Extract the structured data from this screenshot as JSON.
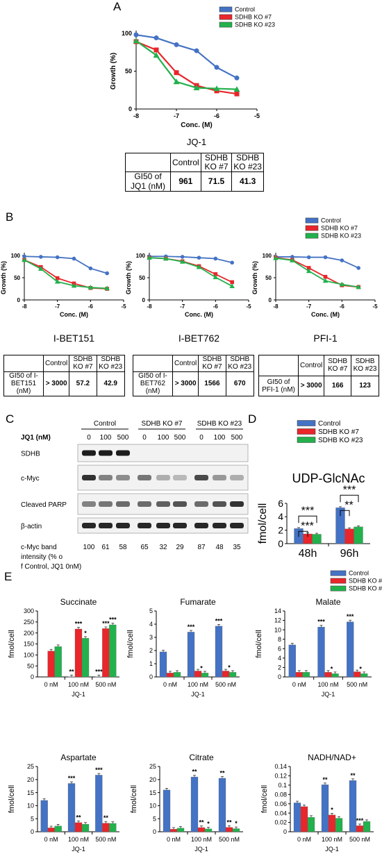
{
  "colors": {
    "control": "#4472c4",
    "ko7": "#e8262b",
    "ko23": "#22b14c"
  },
  "panel_labels": {
    "a": "A",
    "b": "B",
    "c": "C",
    "d": "D",
    "e": "E"
  },
  "legend": {
    "control": "Control",
    "ko7": "SDHB KO #7",
    "ko23": "SDHB KO #23"
  },
  "chart_data": [
    {
      "id": "A",
      "type": "line",
      "title": "JQ-1",
      "xlabel": "Conc. (M)",
      "ylabel": "Growth (%)",
      "xlim": [
        -8,
        -5
      ],
      "ylim": [
        0,
        100
      ],
      "xticks": [
        "-8",
        "-7",
        "-6",
        "-5"
      ],
      "yticks": [
        "0",
        "50",
        "100"
      ],
      "x": [
        -8,
        -7.5,
        -7,
        -6.5,
        -6,
        -5.5
      ],
      "series": [
        {
          "name": "Control",
          "values": [
            98,
            94,
            85,
            77,
            55,
            41
          ]
        },
        {
          "name": "SDHB KO #7",
          "values": [
            89,
            78,
            48,
            31,
            24,
            20
          ]
        },
        {
          "name": "SDHB KO #23",
          "values": [
            90,
            71,
            36,
            28,
            27,
            26
          ]
        }
      ]
    },
    {
      "id": "B1",
      "type": "line",
      "title": "I-BET151",
      "xlabel": "Conc. (M)",
      "ylabel": "Growth (%)",
      "xlim": [
        -8,
        -5
      ],
      "ylim": [
        0,
        100
      ],
      "xticks": [
        "-8",
        "-7",
        "-6",
        "-5"
      ],
      "yticks": [
        "0",
        "50",
        "100"
      ],
      "x": [
        -8,
        -7.5,
        -7,
        -6.5,
        -6,
        -5.5
      ],
      "series": [
        {
          "name": "Control",
          "values": [
            98,
            97,
            96,
            93,
            71,
            60
          ]
        },
        {
          "name": "SDHB KO #7",
          "values": [
            90,
            74,
            49,
            37,
            27,
            25
          ]
        },
        {
          "name": "SDHB KO #23",
          "values": [
            90,
            70,
            41,
            32,
            28,
            26
          ]
        }
      ]
    },
    {
      "id": "B2",
      "type": "line",
      "title": "I-BET762",
      "xlabel": "Conc. (M)",
      "ylabel": "Growth (%)",
      "xlim": [
        -8,
        -5
      ],
      "ylim": [
        0,
        100
      ],
      "xticks": [
        "-8",
        "-7",
        "-6",
        "-5"
      ],
      "yticks": [
        "0",
        "50",
        "100"
      ],
      "x": [
        -8,
        -7.5,
        -7,
        -6.5,
        -6,
        -5.5
      ],
      "series": [
        {
          "name": "Control",
          "values": [
            98,
            98,
            97,
            95,
            93,
            84
          ]
        },
        {
          "name": "SDHB KO #7",
          "values": [
            95,
            93,
            87,
            76,
            58,
            40
          ]
        },
        {
          "name": "SDHB KO #23",
          "values": [
            95,
            93,
            86,
            74,
            51,
            31
          ]
        }
      ]
    },
    {
      "id": "B3",
      "type": "line",
      "title": "PFI-1",
      "xlabel": "Conc. (M)",
      "ylabel": "Growth (%)",
      "xlim": [
        -8,
        -5
      ],
      "ylim": [
        0,
        100
      ],
      "xticks": [
        "-8",
        "-7",
        "-6",
        "-5"
      ],
      "yticks": [
        "0",
        "50",
        "100"
      ],
      "x": [
        -8,
        -7.5,
        -7,
        -6.5,
        -6,
        -5.5
      ],
      "series": [
        {
          "name": "Control",
          "values": [
            97,
            97,
            96,
            96,
            89,
            72
          ]
        },
        {
          "name": "SDHB KO #7",
          "values": [
            95,
            90,
            72,
            52,
            33,
            29
          ]
        },
        {
          "name": "SDHB KO #23",
          "values": [
            94,
            89,
            65,
            43,
            35,
            29
          ]
        }
      ]
    },
    {
      "id": "D",
      "type": "bar",
      "title": "UDP-GlcNAc",
      "ylabel": "fmol/cell",
      "categories": [
        "48h",
        "96h"
      ],
      "ylim": [
        0,
        6
      ],
      "yticks": [
        "0",
        "2",
        "4",
        "6"
      ],
      "series": [
        {
          "name": "Control",
          "values": [
            2.25,
            5.35
          ]
        },
        {
          "name": "SDHB KO #7",
          "values": [
            1.45,
            2.2
          ]
        },
        {
          "name": "SDHB KO #23",
          "values": [
            1.4,
            2.5
          ]
        }
      ],
      "significance": [
        "***",
        "***",
        "***",
        "**"
      ]
    },
    {
      "id": "E1",
      "type": "bar",
      "title": "Succinate",
      "ylabel": "fmol/cell",
      "xlabel": "JQ-1",
      "categories": [
        "0 nM",
        "100 nM",
        "500 nM"
      ],
      "ylim": [
        0,
        300
      ],
      "yticks": [
        "0",
        "50",
        "100",
        "150",
        "200",
        "250",
        "300"
      ],
      "series": [
        {
          "name": "Control",
          "values": [
            0,
            1,
            1
          ]
        },
        {
          "name": "SDHB KO #7",
          "values": [
            118,
            218,
            220
          ]
        },
        {
          "name": "SDHB KO #23",
          "values": [
            138,
            176,
            237
          ]
        }
      ],
      "stars": [
        [
          "",
          "",
          ""
        ],
        [
          "**",
          "***",
          "*"
        ],
        [
          "***",
          "***",
          "***"
        ]
      ]
    },
    {
      "id": "E2",
      "type": "bar",
      "title": "Fumarate",
      "ylabel": "fmol/cell",
      "xlabel": "JQ-1",
      "categories": [
        "0 nM",
        "100 nM",
        "500 nM"
      ],
      "ylim": [
        0,
        5
      ],
      "yticks": [
        "0",
        "1",
        "2",
        "3",
        "4",
        "5"
      ],
      "series": [
        {
          "name": "Control",
          "values": [
            1.9,
            3.4,
            3.85
          ]
        },
        {
          "name": "SDHB KO #7",
          "values": [
            0.3,
            0.45,
            0.45
          ]
        },
        {
          "name": "SDHB KO #23",
          "values": [
            0.35,
            0.3,
            0.35
          ]
        }
      ],
      "stars": [
        [
          "",
          "",
          ""
        ],
        [
          "***",
          "",
          ""
        ],
        [
          "***",
          "",
          ""
        ]
      ],
      "stars2": [
        "",
        "*",
        "*"
      ]
    },
    {
      "id": "E3",
      "type": "bar",
      "title": "Malate",
      "ylabel": "fmol/cell",
      "xlabel": "JQ-1",
      "categories": [
        "0 nM",
        "100 nM",
        "500 nM"
      ],
      "ylim": [
        0,
        14
      ],
      "yticks": [
        "0",
        "2",
        "4",
        "6",
        "8",
        "10",
        "12",
        "14"
      ],
      "series": [
        {
          "name": "Control",
          "values": [
            6.8,
            10.6,
            11.7
          ]
        },
        {
          "name": "SDHB KO #7",
          "values": [
            1.0,
            1.0,
            1.1
          ]
        },
        {
          "name": "SDHB KO #23",
          "values": [
            1.0,
            0.7,
            0.7
          ]
        }
      ],
      "stars": [
        [
          "",
          "",
          ""
        ],
        [
          "***",
          "",
          ""
        ],
        [
          "***",
          "",
          ""
        ]
      ],
      "stars2": [
        "",
        "*",
        "*"
      ]
    },
    {
      "id": "E4",
      "type": "bar",
      "title": "Aspartate",
      "ylabel": "fmol/cell",
      "xlabel": "JQ-1",
      "categories": [
        "0 nM",
        "100 nM",
        "500 nM"
      ],
      "ylim": [
        0,
        25
      ],
      "yticks": [
        "0",
        "5",
        "10",
        "15",
        "20",
        "25"
      ],
      "series": [
        {
          "name": "Control",
          "values": [
            12,
            18.5,
            21.7
          ]
        },
        {
          "name": "SDHB KO #7",
          "values": [
            1.5,
            3.5,
            3.3
          ]
        },
        {
          "name": "SDHB KO #23",
          "values": [
            2.2,
            2.9,
            3.2
          ]
        }
      ],
      "stars": [
        [
          "",
          "",
          ""
        ],
        [
          "***",
          "**",
          ""
        ],
        [
          "***",
          "**",
          ""
        ]
      ]
    },
    {
      "id": "E5",
      "type": "bar",
      "title": "Citrate",
      "ylabel": "fmol/cell",
      "xlabel": "JQ-1",
      "categories": [
        "0 nM",
        "100 nM",
        "500 nM"
      ],
      "ylim": [
        0,
        25
      ],
      "yticks": [
        "0",
        "5",
        "10",
        "15",
        "20",
        "25"
      ],
      "series": [
        {
          "name": "Control",
          "values": [
            16,
            21,
            20.5
          ]
        },
        {
          "name": "SDHB KO #7",
          "values": [
            1.0,
            1.6,
            1.7
          ]
        },
        {
          "name": "SDHB KO #23",
          "values": [
            1.4,
            1.1,
            1.2
          ]
        }
      ],
      "stars": [
        [
          "",
          "",
          ""
        ],
        [
          "**",
          "**",
          "*"
        ],
        [
          "**",
          "**",
          "*"
        ]
      ]
    },
    {
      "id": "E6",
      "type": "bar",
      "title": "NADH/NAD+",
      "ylabel": "fmol/cell",
      "xlabel": "JQ-1",
      "categories": [
        "0 nM",
        "100 nM",
        "500 nM"
      ],
      "ylim": [
        0,
        0.14
      ],
      "yticks": [
        "0",
        "0.02",
        "0.04",
        "0.06",
        "0.08",
        "0.1",
        "0.12",
        "0.14"
      ],
      "series": [
        {
          "name": "Control",
          "values": [
            0.062,
            0.101,
            0.11
          ]
        },
        {
          "name": "SDHB KO #7",
          "values": [
            0.054,
            0.036,
            0.013
          ]
        },
        {
          "name": "SDHB KO #23",
          "values": [
            0.031,
            0.029,
            0.022
          ]
        }
      ],
      "stars": [
        [
          "",
          "",
          ""
        ],
        [
          "**",
          "*",
          ""
        ],
        [
          "**",
          "***",
          ""
        ]
      ]
    }
  ],
  "tables": {
    "a": {
      "headers": [
        "",
        "Control",
        "SDHB KO #7",
        "SDHB KO #23"
      ],
      "rowlabel": "GI50 of JQ1 (nM)",
      "values": [
        "961",
        "71.5",
        "41.3"
      ]
    },
    "b1": {
      "rowlabel": "GI50 of I-BET151 (nM)",
      "values": [
        "> 3000",
        "57.2",
        "42.9"
      ]
    },
    "b2": {
      "rowlabel": "GI50 of I-BET762 (nM)",
      "values": [
        "> 3000",
        "1566",
        "670"
      ]
    },
    "b3": {
      "rowlabel": "GI50 of PFI-1 (nM)",
      "values": [
        "> 3000",
        "166",
        "123"
      ]
    }
  },
  "western": {
    "groups": [
      "Control",
      "SDHB KO #7",
      "SDHB KO #23"
    ],
    "jq1_label": "JQ1 (nM)",
    "doses": [
      "0",
      "100",
      "500",
      "0",
      "100",
      "500",
      "0",
      "100",
      "500"
    ],
    "bands": [
      "SDHB",
      "c-Myc",
      "Cleaved PARP",
      "β-actin"
    ],
    "intensity_label": "c-Myc band intensity (% of Control, JQ1 0nM)",
    "intensity": [
      "100",
      "61",
      "58",
      "65",
      "32",
      "29",
      "87",
      "48",
      "35"
    ]
  }
}
